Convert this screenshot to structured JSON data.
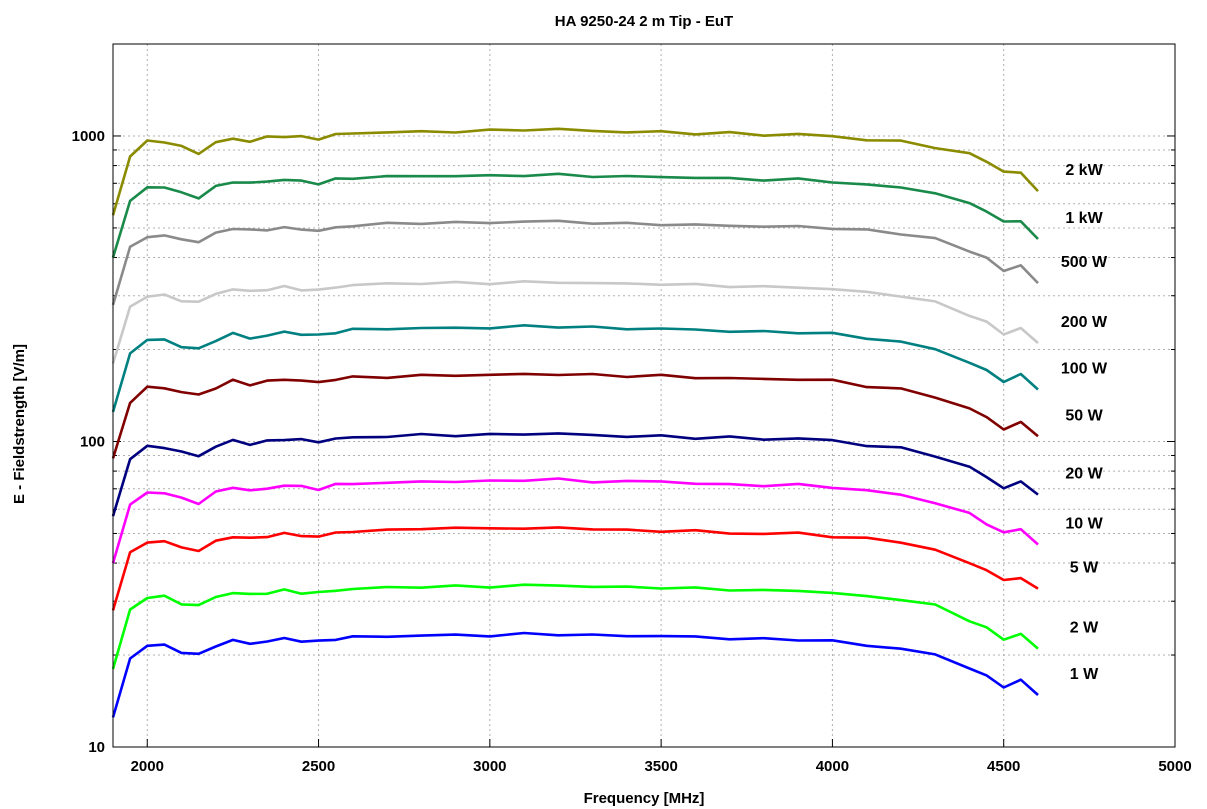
{
  "chart_data": {
    "type": "line",
    "title": "HA 9250-24   2 m Tip - EuT",
    "xlabel": "Frequency [MHz]",
    "ylabel": "E - Fieldstrength [V/m]",
    "xlim": [
      1900,
      5000
    ],
    "ylim": [
      10,
      2000
    ],
    "yscale": "log",
    "grid": true,
    "x_ticks": [
      2000,
      2500,
      3000,
      3500,
      4000,
      4500,
      5000
    ],
    "y_ticks": [
      10,
      100,
      1000
    ],
    "x": [
      1900,
      1950,
      2000,
      2050,
      2100,
      2150,
      2200,
      2250,
      2300,
      2350,
      2400,
      2450,
      2500,
      2550,
      2600,
      2700,
      2800,
      2900,
      3000,
      3100,
      3200,
      3300,
      3400,
      3500,
      3600,
      3700,
      3800,
      3900,
      4000,
      4100,
      4200,
      4300,
      4400,
      4450,
      4500,
      4550,
      4600
    ],
    "series": [
      {
        "name": "2 kW",
        "color": "#8b8b00",
        "values": [
          550,
          860,
          960,
          960,
          920,
          880,
          950,
          980,
          960,
          990,
          1000,
          990,
          980,
          1010,
          1020,
          1030,
          1030,
          1035,
          1040,
          1050,
          1050,
          1040,
          1030,
          1030,
          1020,
          1020,
          1010,
          1010,
          1000,
          970,
          960,
          920,
          870,
          830,
          760,
          760,
          660
        ]
      },
      {
        "name": "1 kW",
        "color": "#1a8a4a",
        "values": [
          400,
          610,
          680,
          680,
          650,
          630,
          680,
          710,
          700,
          710,
          720,
          710,
          700,
          720,
          730,
          735,
          740,
          740,
          740,
          745,
          745,
          740,
          735,
          735,
          730,
          725,
          720,
          720,
          710,
          690,
          680,
          650,
          600,
          570,
          520,
          530,
          460
        ]
      },
      {
        "name": "500 W",
        "color": "#8a8a8a",
        "values": [
          280,
          430,
          470,
          470,
          460,
          450,
          480,
          500,
          490,
          495,
          500,
          495,
          490,
          500,
          510,
          515,
          520,
          520,
          520,
          525,
          525,
          520,
          515,
          515,
          510,
          510,
          505,
          505,
          500,
          490,
          480,
          460,
          420,
          400,
          360,
          380,
          330
        ]
      },
      {
        "name": "200 W",
        "color": "#c8c8c8",
        "values": [
          180,
          275,
          300,
          300,
          290,
          285,
          305,
          315,
          310,
          315,
          320,
          315,
          312,
          320,
          325,
          328,
          330,
          330,
          330,
          332,
          332,
          330,
          328,
          328,
          325,
          323,
          320,
          320,
          315,
          308,
          300,
          285,
          260,
          245,
          225,
          235,
          210
        ]
      },
      {
        "name": "100 W",
        "color": "#008080",
        "values": [
          125,
          195,
          215,
          215,
          205,
          200,
          215,
          225,
          218,
          222,
          228,
          225,
          222,
          228,
          232,
          234,
          235,
          235,
          236,
          238,
          238,
          236,
          234,
          234,
          232,
          230,
          228,
          228,
          225,
          218,
          212,
          200,
          182,
          170,
          158,
          165,
          148
        ]
      },
      {
        "name": "50 W",
        "color": "#800000",
        "values": [
          88,
          135,
          150,
          150,
          145,
          142,
          150,
          158,
          154,
          157,
          160,
          158,
          156,
          160,
          162,
          163,
          164,
          165,
          165,
          166,
          166,
          165,
          164,
          164,
          162,
          161,
          160,
          160,
          158,
          152,
          148,
          140,
          128,
          120,
          110,
          115,
          104
        ]
      },
      {
        "name": "20 W",
        "color": "#00007f",
        "values": [
          57,
          88,
          96,
          96,
          92,
          90,
          96,
          101,
          98,
          100,
          102,
          101,
          100,
          102,
          103,
          104,
          105,
          105,
          105,
          106,
          106,
          105,
          104,
          104,
          103,
          103,
          102,
          102,
          101,
          97,
          95,
          90,
          82,
          77,
          70,
          74,
          67
        ]
      },
      {
        "name": "10 W",
        "color": "#ff00ff",
        "values": [
          40,
          62,
          68,
          68,
          65,
          63,
          68,
          71,
          69,
          70,
          72,
          71,
          70,
          72,
          73,
          73,
          74,
          74,
          74,
          75,
          75,
          74,
          74,
          74,
          73,
          72,
          72,
          72,
          71,
          69,
          67,
          63,
          58,
          54,
          50,
          52,
          46
        ]
      },
      {
        "name": "5 W",
        "color": "#ff0000",
        "values": [
          28,
          43,
          47,
          47,
          45,
          44,
          47,
          49,
          48,
          49,
          50,
          49,
          49,
          50,
          51,
          51,
          52,
          52,
          52,
          52,
          52,
          52,
          51,
          51,
          51,
          50,
          50,
          50,
          49,
          48,
          47,
          44,
          40,
          38,
          35,
          36,
          33
        ]
      },
      {
        "name": "2 W",
        "color": "#00ff00",
        "values": [
          18,
          28,
          31,
          31,
          29.5,
          29,
          31,
          32,
          31.5,
          32,
          32.5,
          32,
          32,
          32.5,
          33,
          33.2,
          33.5,
          33.5,
          33.5,
          33.8,
          33.8,
          33.5,
          33.3,
          33.3,
          33,
          32.8,
          32.5,
          32.5,
          32,
          31,
          30.5,
          29,
          26,
          24.5,
          22.5,
          23.5,
          21
        ]
      },
      {
        "name": "1 W",
        "color": "#0000ff",
        "values": [
          12.5,
          19.5,
          21.5,
          21.5,
          20.5,
          20,
          21.5,
          22.3,
          21.8,
          22.2,
          22.6,
          22.3,
          22.1,
          22.6,
          22.9,
          23,
          23.2,
          23.2,
          23.2,
          23.4,
          23.4,
          23.2,
          23.1,
          23.1,
          22.9,
          22.7,
          22.5,
          22.5,
          22.2,
          21.5,
          21,
          20,
          18.2,
          17,
          15.8,
          16.5,
          14.8
        ]
      }
    ]
  }
}
